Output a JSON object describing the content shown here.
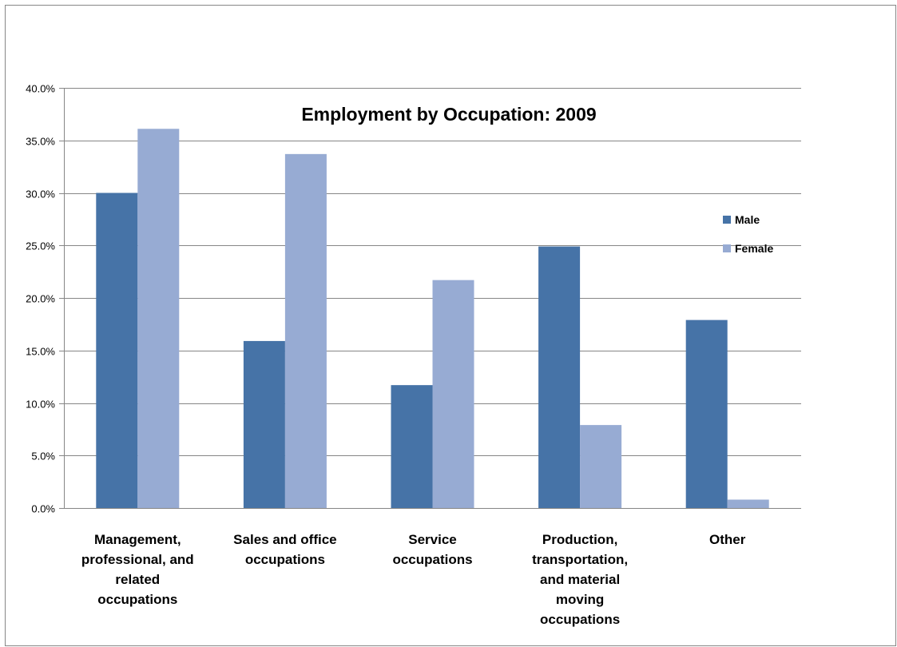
{
  "chart_data": {
    "type": "bar",
    "title": "Employment by Occupation: 2009",
    "categories": [
      [
        "Management,",
        "professional, and",
        "related",
        "occupations"
      ],
      [
        "Sales and office",
        "occupations"
      ],
      [
        "Service",
        "occupations"
      ],
      [
        "Production,",
        "transportation,",
        "and material",
        "moving",
        "occupations"
      ],
      [
        "Other"
      ]
    ],
    "series": [
      {
        "name": "Male",
        "color": "#4673a7",
        "values": [
          30.0,
          15.9,
          11.7,
          24.9,
          17.9
        ]
      },
      {
        "name": "Female",
        "color": "#97abd3",
        "values": [
          36.1,
          33.7,
          21.7,
          7.9,
          0.8
        ]
      }
    ],
    "yticks": [
      "0.0%",
      "5.0%",
      "10.0%",
      "15.0%",
      "20.0%",
      "25.0%",
      "30.0%",
      "35.0%",
      "40.0%"
    ],
    "ylim": [
      0,
      40
    ],
    "grid": true,
    "legend_position": "right"
  }
}
